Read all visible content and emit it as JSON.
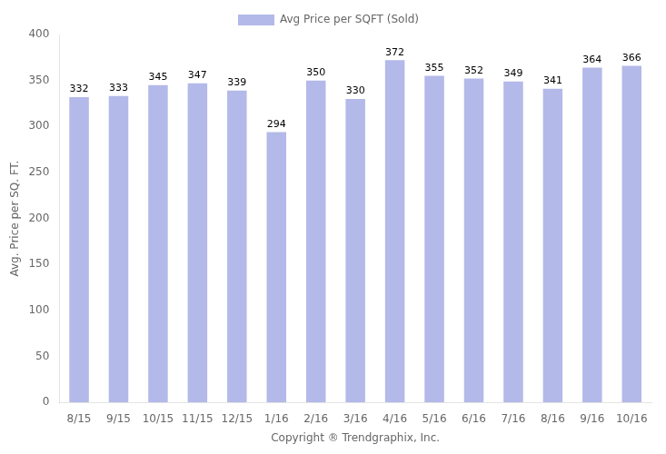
{
  "chart_data": {
    "type": "bar",
    "categories": [
      "8/15",
      "9/15",
      "10/15",
      "11/15",
      "12/15",
      "1/16",
      "2/16",
      "3/16",
      "4/16",
      "5/16",
      "6/16",
      "7/16",
      "8/16",
      "9/16",
      "10/16"
    ],
    "series": [
      {
        "name": "Avg Price per SQFT (Sold)",
        "color": "#b3b9e8",
        "values": [
          332,
          333,
          345,
          347,
          339,
          294,
          350,
          330,
          372,
          355,
          352,
          349,
          341,
          364,
          366
        ]
      }
    ],
    "xlabel": "Copyright ® Trendgraphix, Inc.",
    "ylabel": "Avg. Price per SQ. FT.",
    "ylim": [
      0,
      400
    ],
    "yticks": [
      0,
      50,
      100,
      150,
      200,
      250,
      300,
      350,
      400
    ],
    "grid": false,
    "legend": "top",
    "data_labels": true
  }
}
